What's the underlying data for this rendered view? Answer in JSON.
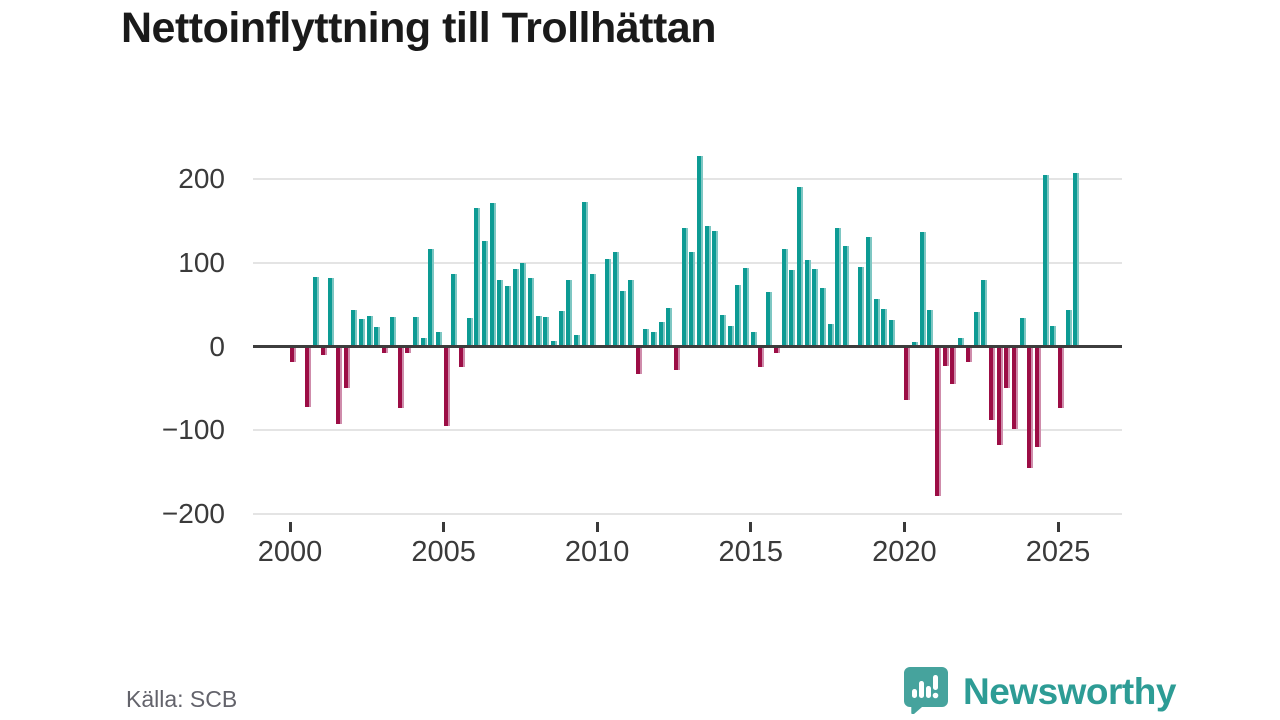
{
  "chart_data": {
    "type": "bar",
    "title": "Nettoinflyttning till Trollhättan",
    "source": "Källa: SCB",
    "x_unit": "quarter",
    "start_period": "2000Q1",
    "end_period": "2025Q3",
    "grid": true,
    "ylim": [
      -200,
      240
    ],
    "y_tick_values": [
      200,
      100,
      0,
      -100,
      -200
    ],
    "y_tick_labels": [
      "200",
      "100",
      "0",
      "−100",
      "−200"
    ],
    "x_tick_years": [
      2000,
      2005,
      2010,
      2015,
      2020,
      2025
    ],
    "x_tick_labels": [
      "2000",
      "2005",
      "2010",
      "2015",
      "2020",
      "2025"
    ],
    "colors": {
      "positive": "#0d9b94",
      "positive_edge": "#7ec7c3",
      "negative": "#9c0d45",
      "negative_edge": "#cf8cab",
      "zero_axis": "#3d3d3d",
      "gridline": "#e4e4e4",
      "axis_text": "#3a3a3a",
      "title_text": "#1a1a1a",
      "source_text": "#63636b",
      "brand_teal": "#2d9c95"
    },
    "values": [
      -18,
      0,
      -72,
      83,
      -10,
      82,
      -92,
      -50,
      43,
      33,
      37,
      23,
      -8,
      35,
      -74,
      -8,
      35,
      10,
      117,
      17,
      -95,
      87,
      -24,
      34,
      165,
      126,
      171,
      79,
      72,
      92,
      100,
      82,
      37,
      35,
      6,
      42,
      79,
      14,
      173,
      87,
      0,
      105,
      113,
      66,
      79,
      -33,
      21,
      17,
      29,
      46,
      -28,
      141,
      113,
      228,
      144,
      138,
      38,
      25,
      73,
      94,
      17,
      -25,
      65,
      -8,
      117,
      91,
      190,
      103,
      93,
      70,
      27,
      141,
      120,
      0,
      95,
      131,
      57,
      45,
      32,
      0,
      -64,
      5,
      137,
      43,
      -178,
      -23,
      -45,
      10,
      -18,
      41,
      80,
      -88,
      -118,
      -49,
      -98,
      34,
      -145,
      -120,
      205,
      25,
      -74,
      43,
      207
    ]
  },
  "logo": {
    "text": "Newsworthy",
    "icon": "newsworthy-bar-chart-speech-bubble-icon"
  }
}
